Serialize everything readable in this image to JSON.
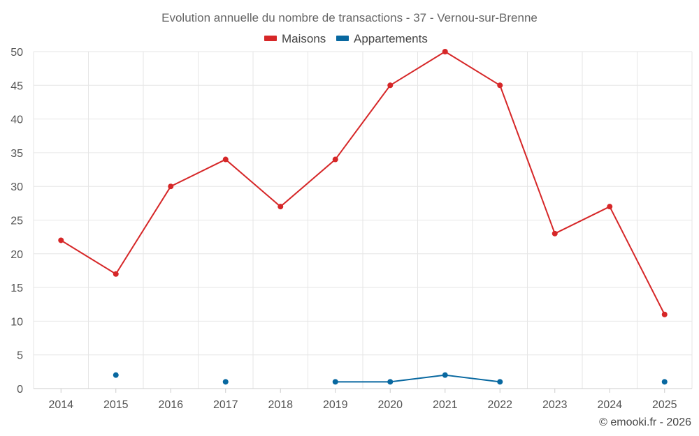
{
  "chart_data": {
    "type": "line",
    "title": "Evolution annuelle du nombre de transactions - 37 - Vernou-sur-Brenne",
    "x": [
      "2014",
      "2015",
      "2016",
      "2017",
      "2018",
      "2019",
      "2020",
      "2021",
      "2022",
      "2023",
      "2024",
      "2025"
    ],
    "ylim": [
      0,
      50
    ],
    "yticks": [
      0,
      5,
      10,
      15,
      20,
      25,
      30,
      35,
      40,
      45,
      50
    ],
    "grid": true,
    "legend_position": "top-center",
    "series": [
      {
        "name": "Maisons",
        "color": "#d62728",
        "values": [
          22,
          17,
          30,
          34,
          27,
          34,
          45,
          50,
          45,
          23,
          27,
          11
        ]
      },
      {
        "name": "Appartements",
        "color": "#0868a0",
        "values": [
          null,
          2,
          null,
          1,
          null,
          1,
          1,
          2,
          1,
          null,
          null,
          1
        ]
      }
    ]
  },
  "credit": "© emooki.fr - 2026"
}
